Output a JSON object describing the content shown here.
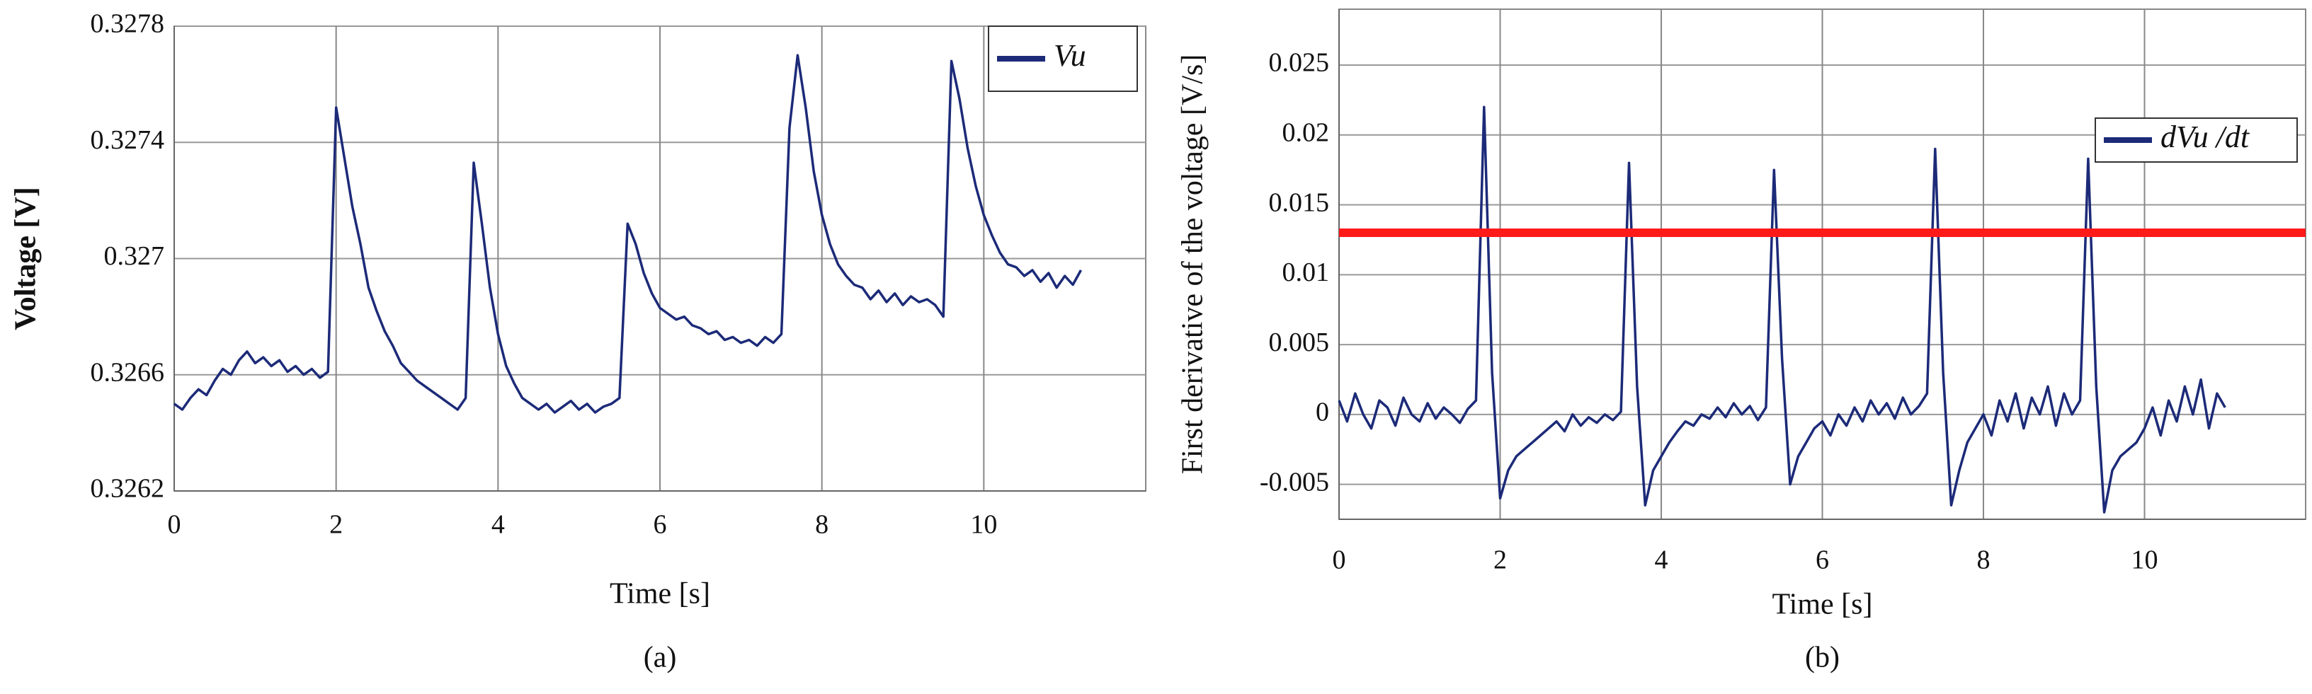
{
  "chart_data": [
    {
      "type": "line",
      "caption": "(a)",
      "xlabel": "Time [s]",
      "ylabel": "Voltage [V]",
      "xlim": [
        0,
        12
      ],
      "xticks": [
        0,
        2,
        4,
        6,
        8,
        10
      ],
      "ylim": [
        0.3262,
        0.3278
      ],
      "yticks": [
        0.3262,
        0.3266,
        0.327,
        0.3274,
        0.3278
      ],
      "grid": true,
      "legend": "upper right",
      "x": [
        0,
        0.1,
        0.2,
        0.3,
        0.4,
        0.5,
        0.6,
        0.7,
        0.8,
        0.9,
        1,
        1.1,
        1.2,
        1.3,
        1.4,
        1.5,
        1.6,
        1.7,
        1.8,
        1.9,
        2,
        2.1,
        2.2,
        2.3,
        2.4,
        2.5,
        2.6,
        2.7,
        2.8,
        2.9,
        3,
        3.1,
        3.2,
        3.3,
        3.4,
        3.5,
        3.6,
        3.7,
        3.8,
        3.9,
        4,
        4.1,
        4.2,
        4.3,
        4.4,
        4.5,
        4.6,
        4.7,
        4.8,
        4.9,
        5,
        5.1,
        5.2,
        5.3,
        5.4,
        5.5,
        5.6,
        5.7,
        5.8,
        5.9,
        6,
        6.1,
        6.2,
        6.3,
        6.4,
        6.5,
        6.6,
        6.7,
        6.8,
        6.9,
        7,
        7.1,
        7.2,
        7.3,
        7.4,
        7.5,
        7.6,
        7.7,
        7.8,
        7.9,
        8,
        8.1,
        8.2,
        8.3,
        8.4,
        8.5,
        8.6,
        8.7,
        8.8,
        8.9,
        9,
        9.1,
        9.2,
        9.3,
        9.4,
        9.5,
        9.6,
        9.7,
        9.8,
        9.9,
        10,
        10.1,
        10.2,
        10.3,
        10.4,
        10.5,
        10.6,
        10.7,
        10.8,
        10.9,
        11,
        11.1,
        11.2
      ],
      "series": [
        {
          "name": "Vu",
          "color": "#1c2a78",
          "values": [
            0.3265,
            0.32648,
            0.32652,
            0.32655,
            0.32653,
            0.32658,
            0.32662,
            0.3266,
            0.32665,
            0.32668,
            0.32664,
            0.32666,
            0.32663,
            0.32665,
            0.32661,
            0.32663,
            0.3266,
            0.32662,
            0.32659,
            0.32661,
            0.32752,
            0.32735,
            0.32718,
            0.32705,
            0.3269,
            0.32682,
            0.32675,
            0.3267,
            0.32664,
            0.32661,
            0.32658,
            0.32656,
            0.32654,
            0.32652,
            0.3265,
            0.32648,
            0.32652,
            0.32733,
            0.32712,
            0.3269,
            0.32674,
            0.32663,
            0.32657,
            0.32652,
            0.3265,
            0.32648,
            0.3265,
            0.32647,
            0.32649,
            0.32651,
            0.32648,
            0.3265,
            0.32647,
            0.32649,
            0.3265,
            0.32652,
            0.32712,
            0.32705,
            0.32695,
            0.32688,
            0.32683,
            0.32681,
            0.32679,
            0.3268,
            0.32677,
            0.32676,
            0.32674,
            0.32675,
            0.32672,
            0.32673,
            0.32671,
            0.32672,
            0.3267,
            0.32673,
            0.32671,
            0.32674,
            0.32745,
            0.3277,
            0.32752,
            0.3273,
            0.32715,
            0.32705,
            0.32698,
            0.32694,
            0.32691,
            0.3269,
            0.32686,
            0.32689,
            0.32685,
            0.32688,
            0.32684,
            0.32687,
            0.32685,
            0.32686,
            0.32684,
            0.3268,
            0.32768,
            0.32755,
            0.32738,
            0.32725,
            0.32715,
            0.32708,
            0.32702,
            0.32698,
            0.32697,
            0.32694,
            0.32696,
            0.32692,
            0.32695,
            0.3269,
            0.32694,
            0.32691,
            0.32696
          ]
        }
      ]
    },
    {
      "type": "line",
      "caption": "(b)",
      "xlabel": "Time [s]",
      "ylabel": "First derivative of the voltage [V/s]",
      "xlim": [
        0,
        12
      ],
      "xticks": [
        0,
        2,
        4,
        6,
        8,
        10
      ],
      "ylim": [
        -0.0075,
        0.029
      ],
      "yticks": [
        -0.005,
        0,
        0.005,
        0.01,
        0.015,
        0.02,
        0.025
      ],
      "grid": true,
      "legend": "upper right",
      "hline": {
        "value": 0.013,
        "color": "#ff1a1a"
      },
      "x": [
        0,
        0.1,
        0.2,
        0.3,
        0.4,
        0.5,
        0.6,
        0.7,
        0.8,
        0.9,
        1,
        1.1,
        1.2,
        1.3,
        1.4,
        1.5,
        1.6,
        1.7,
        1.8,
        1.9,
        2,
        2.1,
        2.2,
        2.3,
        2.4,
        2.5,
        2.6,
        2.7,
        2.8,
        2.9,
        3,
        3.1,
        3.2,
        3.3,
        3.4,
        3.5,
        3.6,
        3.7,
        3.8,
        3.9,
        4,
        4.1,
        4.2,
        4.3,
        4.4,
        4.5,
        4.6,
        4.7,
        4.8,
        4.9,
        5,
        5.1,
        5.2,
        5.3,
        5.4,
        5.5,
        5.6,
        5.7,
        5.8,
        5.9,
        6,
        6.1,
        6.2,
        6.3,
        6.4,
        6.5,
        6.6,
        6.7,
        6.8,
        6.9,
        7,
        7.1,
        7.2,
        7.3,
        7.4,
        7.5,
        7.6,
        7.7,
        7.8,
        7.9,
        8,
        8.1,
        8.2,
        8.3,
        8.4,
        8.5,
        8.6,
        8.7,
        8.8,
        8.9,
        9,
        9.1,
        9.2,
        9.3,
        9.4,
        9.5,
        9.6,
        9.7,
        9.8,
        9.9,
        10,
        10.1,
        10.2,
        10.3,
        10.4,
        10.5,
        10.6,
        10.7,
        10.8,
        10.9,
        11
      ],
      "series": [
        {
          "name": "dVu /dt",
          "color": "#1c2a78",
          "values": [
            0.001,
            -0.0005,
            0.0015,
            0,
            -0.001,
            0.001,
            0.0005,
            -0.0008,
            0.0012,
            0,
            -0.0005,
            0.0008,
            -0.0003,
            0.0005,
            0,
            -0.0006,
            0.0004,
            0.001,
            0.022,
            0.003,
            -0.006,
            -0.004,
            -0.003,
            -0.0025,
            -0.002,
            -0.0015,
            -0.001,
            -0.0005,
            -0.0012,
            0,
            -0.0008,
            -0.0002,
            -0.0006,
            0,
            -0.0004,
            0.0002,
            0.018,
            0.002,
            -0.0065,
            -0.004,
            -0.003,
            -0.002,
            -0.0012,
            -0.0005,
            -0.0008,
            0,
            -0.0003,
            0.0005,
            -0.0002,
            0.0008,
            0,
            0.0006,
            -0.0004,
            0.0005,
            0.0175,
            0.004,
            -0.005,
            -0.003,
            -0.002,
            -0.001,
            -0.0005,
            -0.0015,
            0,
            -0.0008,
            0.0005,
            -0.0005,
            0.001,
            0,
            0.0008,
            -0.0003,
            0.0012,
            0,
            0.0006,
            0.0015,
            0.019,
            0.003,
            -0.0065,
            -0.004,
            -0.002,
            -0.001,
            0,
            -0.0015,
            0.001,
            -0.0005,
            0.0015,
            -0.001,
            0.0012,
            0,
            0.002,
            -0.0008,
            0.0015,
            0,
            0.001,
            0.0183,
            0.002,
            -0.007,
            -0.004,
            -0.003,
            -0.0025,
            -0.002,
            -0.001,
            0.0005,
            -0.0015,
            0.001,
            -0.0005,
            0.002,
            0,
            0.0025,
            -0.001,
            0.0015,
            0.0005
          ]
        }
      ]
    }
  ]
}
